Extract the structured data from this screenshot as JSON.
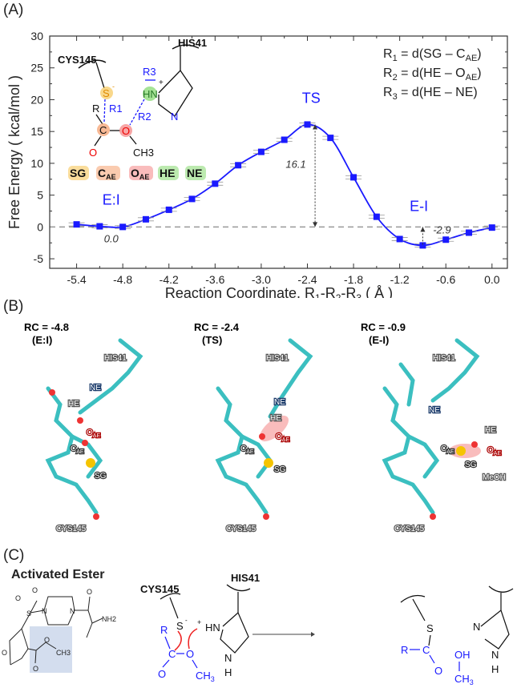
{
  "panels": {
    "a": "(A)",
    "b": "(B)",
    "c": "(C)"
  },
  "chart_data": {
    "type": "line",
    "xlabel": "Reaction Coordinate, R1-R2-R3 ( Å )",
    "xlabel_parts": {
      "pre": "Reaction Coordinate, R",
      "s1": "1",
      "m1": "-R",
      "s2": "2",
      "m2": "-R",
      "s3": "3",
      "post": " ( Å )"
    },
    "ylabel": "Free Energy ( kcal/mol )",
    "xlim": [
      -5.75,
      0.2
    ],
    "ylim": [
      -6.5,
      30
    ],
    "xticks": [
      "-5.4",
      "-4.8",
      "-4.2",
      "-3.6",
      "-3.0",
      "-2.4",
      "-1.8",
      "-1.2",
      "-0.6",
      "0.0"
    ],
    "yticks": [
      "-5",
      "0",
      "5",
      "10",
      "15",
      "20",
      "25",
      "30"
    ],
    "grid": false,
    "series": [
      {
        "color": "#1a1aff",
        "x": [
          -5.4,
          -5.1,
          -4.8,
          -4.5,
          -4.2,
          -3.9,
          -3.6,
          -3.3,
          -3.0,
          -2.7,
          -2.4,
          -2.1,
          -1.8,
          -1.5,
          -1.2,
          -0.9,
          -0.6,
          -0.3,
          0.0
        ],
        "y": [
          0.4,
          0.1,
          0.0,
          1.2,
          2.7,
          4.4,
          6.8,
          9.7,
          11.8,
          13.7,
          16.1,
          14.0,
          7.8,
          1.6,
          -1.9,
          -2.9,
          -2.0,
          -0.9,
          -0.1
        ]
      }
    ],
    "reference_line": 0,
    "annotations": [
      {
        "text": "E:I",
        "x": -4.95,
        "y": 3.5,
        "color": "#1a1aff"
      },
      {
        "text": "TS",
        "x": -2.35,
        "y": 19.5,
        "color": "#1a1aff"
      },
      {
        "text": "E-I",
        "x": -0.95,
        "y": 2.5,
        "color": "#1a1aff"
      },
      {
        "text": "0.0",
        "x": -4.95,
        "y": -2.4,
        "color": "#333333"
      },
      {
        "text": "16.1",
        "x": -2.55,
        "y": 9.3,
        "color": "#333333"
      },
      {
        "text": "-2.9",
        "x": -0.65,
        "y": -1.0,
        "color": "#333333"
      }
    ],
    "definitions": [
      {
        "r": "R",
        "rs": "1",
        "mid": " = d(SG – C",
        "ms": "AE",
        "end": ")"
      },
      {
        "r": "R",
        "rs": "2",
        "mid": " = d(HE – O",
        "ms": "AE",
        "end": ")"
      },
      {
        "r": "R",
        "rs": "3",
        "mid": " = d(HE – NE)",
        "ms": "",
        "end": ""
      }
    ]
  },
  "inset_scheme": {
    "cys": "CYS145",
    "his": "HIS41",
    "s": "S",
    "s_charge": "-",
    "hn": "HN",
    "plus": "+",
    "n": "N",
    "r": "R",
    "c": "C",
    "o": "O",
    "o2": "O",
    "ch3": "CH3",
    "r1": "R1",
    "r2": "R2",
    "r3": "R3",
    "atom_labels": [
      {
        "text": "SG",
        "sub": "",
        "color": "#f7c75a"
      },
      {
        "text": "C",
        "sub": "AE",
        "color": "#f6a87a"
      },
      {
        "text": "O",
        "sub": "AE",
        "color": "#f58f8f"
      },
      {
        "text": "HE",
        "sub": "",
        "color": "#8fdc7a"
      },
      {
        "text": "NE",
        "sub": "",
        "color": "#8fdc7a"
      }
    ]
  },
  "snapshots": [
    {
      "rc": "RC = -4.8",
      "state": "(E:I)",
      "labels": {
        "his": "HIS41",
        "ne": "NE",
        "he": "HE",
        "oae": "O",
        "cae": "C",
        "sg": "SG",
        "cys": "CYS145"
      }
    },
    {
      "rc": "RC = -2.4",
      "state": "(TS)",
      "labels": {
        "his": "HIS41",
        "ne": "NE",
        "he": "HE",
        "oae": "O",
        "cae": "C",
        "sg": "SG",
        "cys": "CYS145"
      }
    },
    {
      "rc": "RC = -0.9",
      "state": "(E-I)",
      "labels": {
        "his": "HIS41",
        "ne": "NE",
        "he": "HE",
        "oae": "O",
        "cae": "C",
        "sg": "SG",
        "cys": "CYS145",
        "meoh": "MeOH"
      }
    }
  ],
  "sub_ae": "AE",
  "panel_c": {
    "title": "Activated Ester",
    "ester": {
      "o1": "O",
      "o2": "O",
      "s": "S",
      "n1": "N",
      "n2": "N",
      "o3": "O",
      "ring_o": "O",
      "nh2": "NH2",
      "o4": "O",
      "o5": "O",
      "ch3": "CH3"
    },
    "mech": {
      "cys": "CYS145",
      "his": "HIS41",
      "s": "S",
      "s_charge": "-",
      "hn": "HN",
      "plus": "+",
      "r": "R",
      "c": "C",
      "o": "O",
      "o2": "O",
      "ch3": "CH",
      "ch3_sub": "3",
      "n": "N",
      "h": "H"
    },
    "product": {
      "s": "S",
      "r": "R",
      "c": "C",
      "o": "O",
      "oh": "OH",
      "ch3": "CH",
      "ch3_sub": "3",
      "n": "N",
      "nh": "N",
      "h": "H"
    }
  }
}
